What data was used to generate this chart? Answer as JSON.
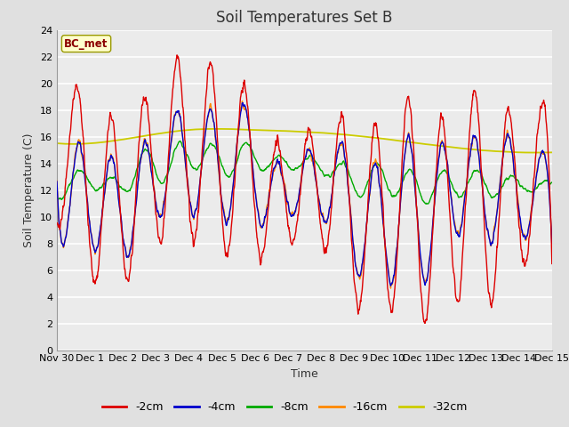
{
  "title": "Soil Temperatures Set B",
  "xlabel": "Time",
  "ylabel": "Soil Temperature (C)",
  "ylim": [
    0,
    24
  ],
  "yticks": [
    0,
    2,
    4,
    6,
    8,
    10,
    12,
    14,
    16,
    18,
    20,
    22,
    24
  ],
  "legend_label": "BC_met",
  "series_colors": {
    "-2cm": "#dd0000",
    "-4cm": "#0000cc",
    "-8cm": "#00aa00",
    "-16cm": "#ff8800",
    "-32cm": "#cccc00"
  },
  "series_linewidth": 1.0,
  "background_color": "#e0e0e0",
  "plot_bg_color": "#ebebeb",
  "grid_color": "#ffffff",
  "title_fontsize": 12,
  "axis_fontsize": 9,
  "tick_fontsize": 8
}
